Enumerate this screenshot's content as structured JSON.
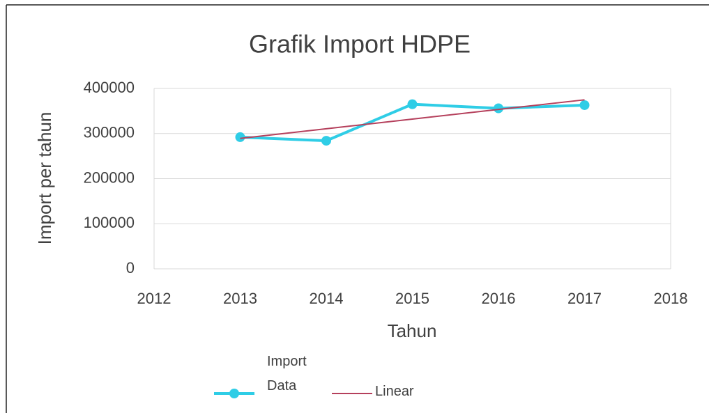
{
  "chart_data": {
    "type": "line",
    "title": "Grafik Import HDPE",
    "x_label": "Tahun",
    "y_label": "Import per tahun",
    "x": [
      2013,
      2014,
      2015,
      2016,
      2017
    ],
    "series": [
      {
        "name": "Import Data",
        "color": "#2fcde6",
        "marker": true,
        "values": [
          292000,
          284000,
          365000,
          356000,
          363000
        ]
      },
      {
        "name": "Linear",
        "color": "#b5405c",
        "marker": false,
        "values": [
          289200,
          310600,
          332000,
          353400,
          374800
        ]
      }
    ],
    "xlim": [
      2012,
      2018
    ],
    "xticks": [
      2012,
      2013,
      2014,
      2015,
      2016,
      2017,
      2018
    ],
    "ylim": [
      0,
      400000
    ],
    "yticks": [
      0,
      100000,
      200000,
      300000,
      400000
    ],
    "grid": true
  }
}
